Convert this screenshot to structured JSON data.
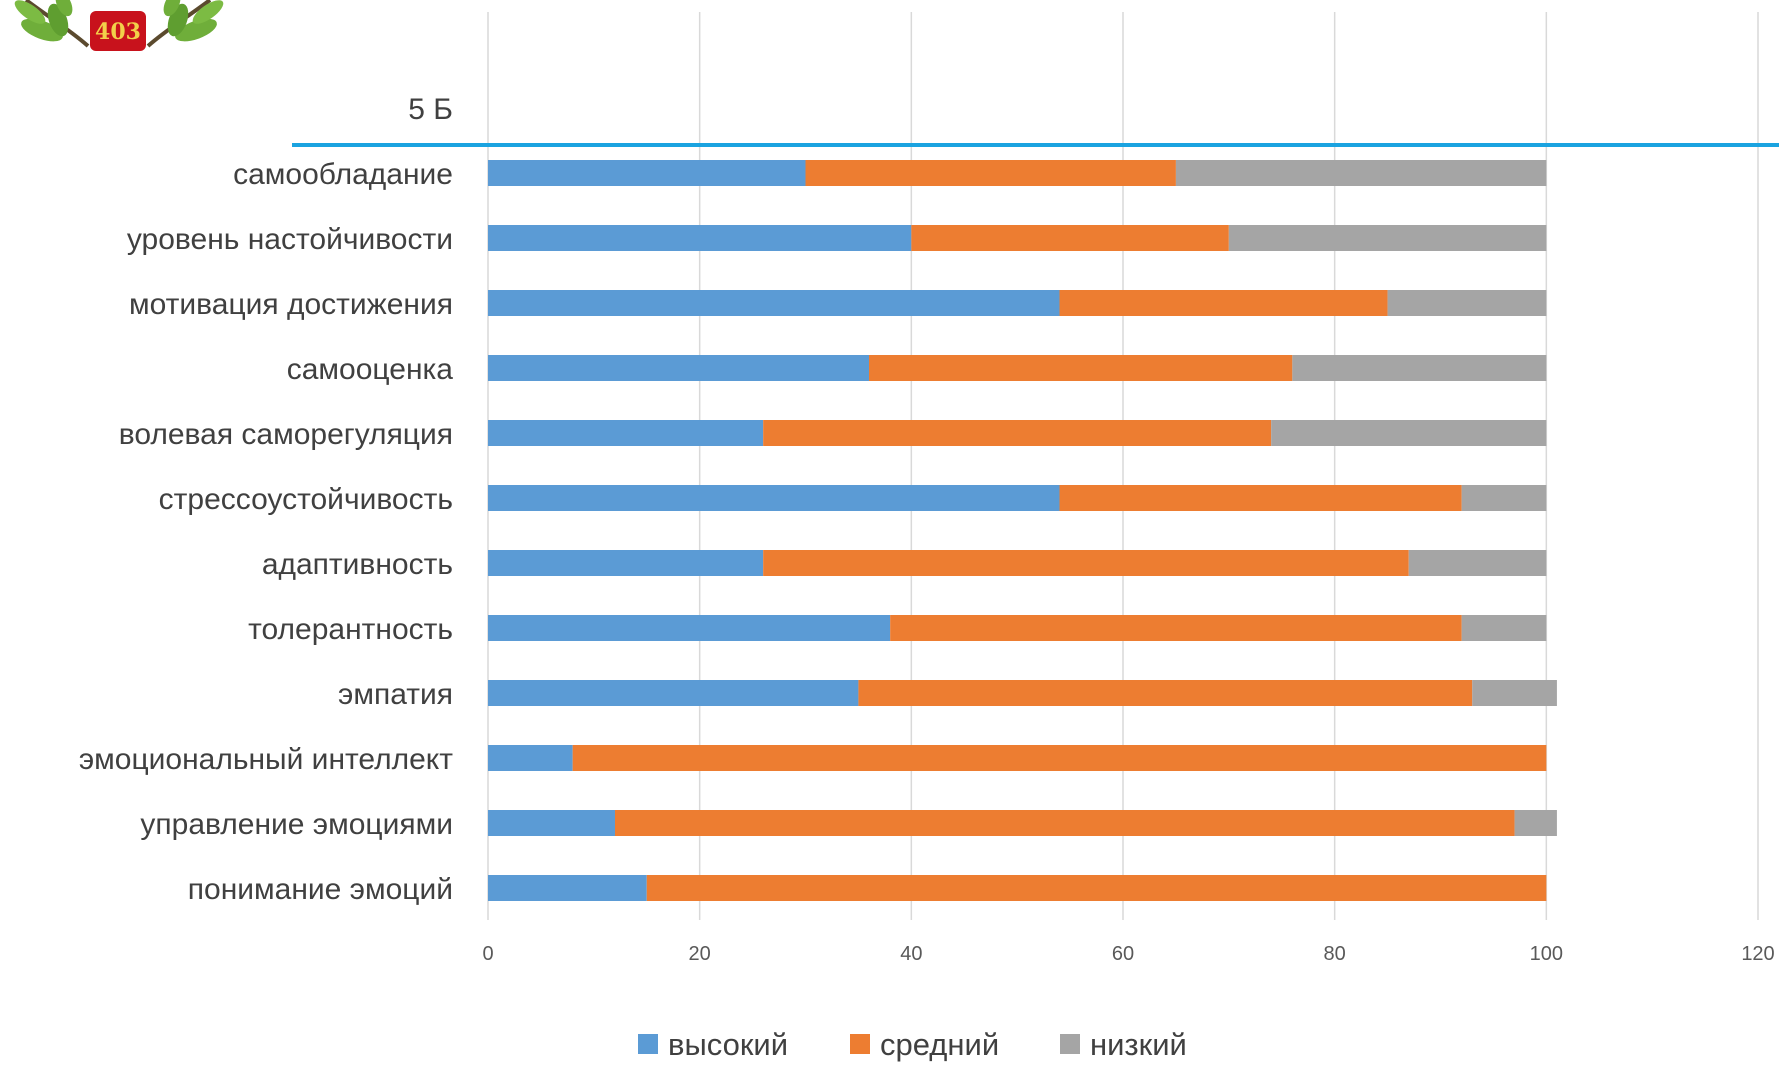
{
  "logo": {
    "number": "403",
    "colors": {
      "badge": "#c8121c",
      "text": "#f2d04a",
      "leaf": "#6fae3a",
      "branch": "#5b4a2e"
    }
  },
  "chart_data": {
    "type": "bar",
    "orientation": "horizontal",
    "stacked": true,
    "categories": [
      "5 Б",
      "самообладание",
      "уровень настойчивости",
      "мотивация достижения",
      "самооценка",
      "волевая саморегуляция",
      "стрессоустойчивость",
      "адаптивность",
      "толерантность",
      "эмпатия",
      "эмоциональный интеллект",
      "управление эмоциями",
      "понимание эмоций"
    ],
    "series": [
      {
        "name": "высокий",
        "color": "#5b9bd5",
        "values": [
          null,
          30,
          40,
          54,
          36,
          26,
          54,
          26,
          38,
          35,
          8,
          12,
          15
        ]
      },
      {
        "name": "средний",
        "color": "#ed7d31",
        "values": [
          null,
          35,
          30,
          31,
          40,
          48,
          38,
          61,
          54,
          58,
          92,
          85,
          85
        ]
      },
      {
        "name": "низкий",
        "color": "#a5a5a5",
        "values": [
          null,
          35,
          30,
          15,
          24,
          26,
          8,
          13,
          8,
          8,
          0,
          4,
          0
        ]
      }
    ],
    "xlim": [
      0,
      120
    ],
    "xticks": [
      0,
      20,
      40,
      60,
      80,
      100,
      120
    ],
    "grid": "vertical",
    "legend": "bottom",
    "separator_color": "#1aa3e0",
    "gridline_color": "#d9d9d9"
  }
}
